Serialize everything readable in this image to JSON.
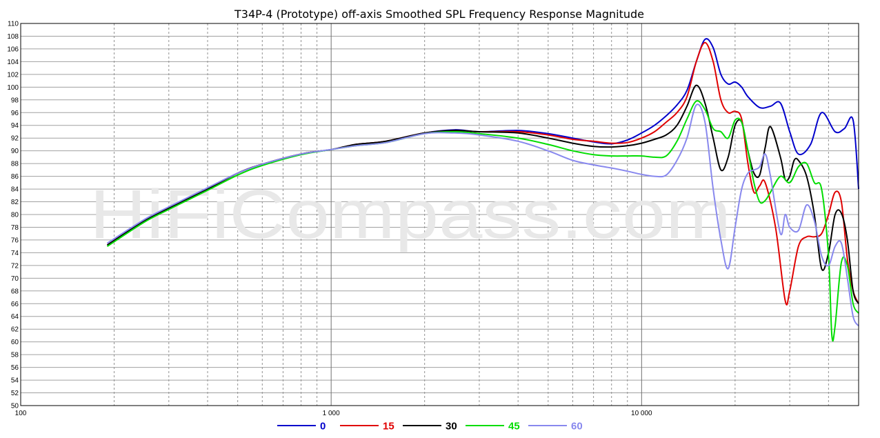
{
  "chart_data": {
    "type": "line",
    "title": "T34P-4 (Prototype) off-axis Smoothed SPL Frequency Response Magnitude",
    "watermark": "HiFiCompass.com",
    "xscale": "log",
    "xlim": [
      100,
      50000
    ],
    "ylim": [
      50,
      110
    ],
    "grid": true,
    "legend_position": "bottom-center",
    "x_tick_labels": [
      {
        "value": 100,
        "label": "100"
      },
      {
        "value": 1000,
        "label": "1 000"
      },
      {
        "value": 10000,
        "label": "10 000"
      }
    ],
    "y_ticks": [
      50,
      52,
      54,
      56,
      58,
      60,
      62,
      64,
      66,
      68,
      70,
      72,
      74,
      76,
      78,
      80,
      82,
      84,
      86,
      88,
      90,
      92,
      94,
      96,
      98,
      100,
      102,
      104,
      106,
      108,
      110
    ],
    "series": [
      {
        "name": "0",
        "color": "#0000cc",
        "x": [
          190,
          250,
          300,
          400,
          500,
          600,
          800,
          1000,
          1200,
          1500,
          2000,
          2500,
          3000,
          4000,
          5000,
          6000,
          7000,
          8000,
          9000,
          10000,
          11000,
          12000,
          13000,
          14000,
          15000,
          16000,
          17000,
          18000,
          19000,
          20000,
          21000,
          22000,
          24000,
          26000,
          28000,
          30000,
          32000,
          35000,
          38000,
          42000,
          45000,
          48000,
          50000
        ],
        "y": [
          75.2,
          79.0,
          81.0,
          84.0,
          86.5,
          87.9,
          89.5,
          90.2,
          91.0,
          91.5,
          92.8,
          93.3,
          93.0,
          93.2,
          92.7,
          92.0,
          91.4,
          91.1,
          91.7,
          92.8,
          94.0,
          95.5,
          97.2,
          99.5,
          104.0,
          107.5,
          106.2,
          102.0,
          100.5,
          100.8,
          100.0,
          98.5,
          96.8,
          97.0,
          97.5,
          93.0,
          89.5,
          91.0,
          96.0,
          93.0,
          93.5,
          94.8,
          84.0
        ]
      },
      {
        "name": "15",
        "color": "#e00000",
        "x": [
          190,
          250,
          300,
          400,
          500,
          600,
          800,
          1000,
          1200,
          1500,
          2000,
          2500,
          3000,
          4000,
          5000,
          6000,
          7000,
          8000,
          9000,
          10000,
          11000,
          12000,
          13000,
          14000,
          15000,
          16000,
          17000,
          18000,
          19000,
          20000,
          21000,
          22000,
          23000,
          24000,
          25000,
          27000,
          29000,
          30000,
          32000,
          34000,
          36000,
          38000,
          40000,
          42000,
          44000,
          46000,
          48000,
          50000
        ],
        "y": [
          75.2,
          79.0,
          81.0,
          84.0,
          86.5,
          87.9,
          89.5,
          90.2,
          91.0,
          91.5,
          92.8,
          93.2,
          93.0,
          93.0,
          92.5,
          91.8,
          91.5,
          91.2,
          91.3,
          92.0,
          93.0,
          94.5,
          96.0,
          98.5,
          104.0,
          107.0,
          104.0,
          98.0,
          96.0,
          96.2,
          95.0,
          88.0,
          83.5,
          84.5,
          85.0,
          78.0,
          66.5,
          68.0,
          75.0,
          76.5,
          76.5,
          77.0,
          80.0,
          83.5,
          82.0,
          73.0,
          68.0,
          66.0
        ]
      },
      {
        "name": "30",
        "color": "#000000",
        "x": [
          190,
          250,
          300,
          400,
          500,
          600,
          800,
          1000,
          1200,
          1500,
          2000,
          2500,
          3000,
          4000,
          5000,
          6000,
          7000,
          8000,
          9000,
          10000,
          11000,
          12000,
          13000,
          14000,
          15000,
          16000,
          17000,
          18000,
          19000,
          20000,
          21000,
          22000,
          23000,
          24000,
          25000,
          26000,
          28000,
          29000,
          30000,
          31000,
          32000,
          34000,
          36000,
          38000,
          40000,
          42000,
          44000,
          46000,
          48000,
          50000
        ],
        "y": [
          75.2,
          79.0,
          81.0,
          84.0,
          86.5,
          87.9,
          89.5,
          90.2,
          91.0,
          91.5,
          92.8,
          93.2,
          93.0,
          92.8,
          92.0,
          91.2,
          90.7,
          90.6,
          90.8,
          91.2,
          91.8,
          92.5,
          94.0,
          97.0,
          100.3,
          97.5,
          92.0,
          87.0,
          89.0,
          94.0,
          94.5,
          90.0,
          86.5,
          86.2,
          90.5,
          93.8,
          89.0,
          85.5,
          86.0,
          88.5,
          88.5,
          86.0,
          80.0,
          71.5,
          74.0,
          80.0,
          80.2,
          76.0,
          68.0,
          66.0
        ]
      },
      {
        "name": "45",
        "color": "#00dd00",
        "x": [
          190,
          250,
          300,
          400,
          500,
          600,
          800,
          1000,
          1200,
          1500,
          2000,
          2500,
          3000,
          4000,
          5000,
          6000,
          7000,
          8000,
          9000,
          10000,
          11000,
          12000,
          13000,
          14000,
          15000,
          16000,
          17000,
          18000,
          19000,
          20000,
          21000,
          22000,
          23000,
          24000,
          25000,
          26000,
          28000,
          30000,
          32000,
          34000,
          36000,
          38000,
          40000,
          41000,
          42000,
          44000,
          46000,
          48000,
          50000
        ],
        "y": [
          75.0,
          78.8,
          80.8,
          83.8,
          86.2,
          87.7,
          89.4,
          90.2,
          90.8,
          91.3,
          92.7,
          93.0,
          92.7,
          92.0,
          91.0,
          90.0,
          89.4,
          89.2,
          89.2,
          89.2,
          89.0,
          89.2,
          91.5,
          95.0,
          97.8,
          96.5,
          93.5,
          93.0,
          92.0,
          94.8,
          94.5,
          90.0,
          85.0,
          82.0,
          82.2,
          83.5,
          86.0,
          85.0,
          87.5,
          88.0,
          85.0,
          84.0,
          73.5,
          61.0,
          62.5,
          72.5,
          72.0,
          66.0,
          64.5
        ]
      },
      {
        "name": "60",
        "color": "#8888ee",
        "x": [
          190,
          250,
          300,
          400,
          500,
          600,
          800,
          1000,
          1200,
          1500,
          2000,
          2500,
          3000,
          4000,
          5000,
          6000,
          7000,
          8000,
          9000,
          10000,
          11000,
          12000,
          13000,
          14000,
          15000,
          16000,
          17000,
          18000,
          19000,
          20000,
          21000,
          22000,
          23000,
          24000,
          25000,
          26000,
          28000,
          29000,
          30000,
          32000,
          34000,
          36000,
          38000,
          40000,
          42000,
          44000,
          46000,
          48000,
          50000
        ],
        "y": [
          75.5,
          79.2,
          81.2,
          84.2,
          86.5,
          87.9,
          89.5,
          90.2,
          90.8,
          91.3,
          92.7,
          92.8,
          92.5,
          91.5,
          90.0,
          88.5,
          87.8,
          87.3,
          86.8,
          86.3,
          86.0,
          86.2,
          88.5,
          92.0,
          97.2,
          94.5,
          84.0,
          76.0,
          71.5,
          78.0,
          84.0,
          86.5,
          87.0,
          87.5,
          89.5,
          86.0,
          77.0,
          80.0,
          78.0,
          77.5,
          81.5,
          79.0,
          73.5,
          72.0,
          75.0,
          75.5,
          70.0,
          64.0,
          62.5
        ]
      }
    ]
  }
}
